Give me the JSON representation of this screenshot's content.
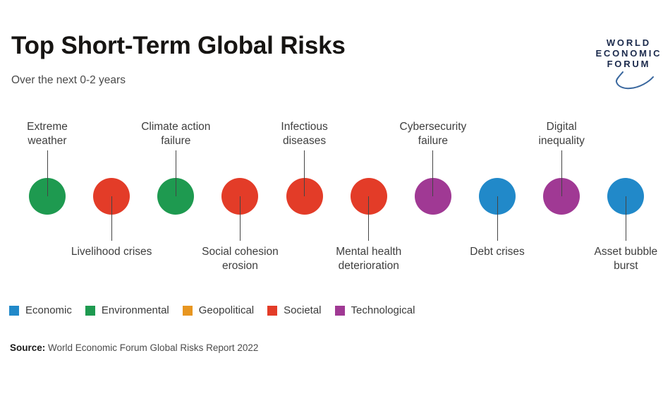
{
  "header": {
    "title": "Top Short-Term Global Risks",
    "subtitle": "Over the next 0-2 years"
  },
  "logo": {
    "text": "WORLD\nECONOMIC\nFORUM"
  },
  "chart_data": {
    "type": "scatter",
    "title": "Top Short-Term Global Risks",
    "subtitle": "Over the next 0-2 years",
    "points": [
      {
        "rank": 1,
        "label": "Extreme\nweather",
        "category": "Environmental",
        "label_position": "above"
      },
      {
        "rank": 2,
        "label": "Livelihood crises",
        "category": "Societal",
        "label_position": "below"
      },
      {
        "rank": 3,
        "label": "Climate action\nfailure",
        "category": "Environmental",
        "label_position": "above"
      },
      {
        "rank": 4,
        "label": "Social cohesion\nerosion",
        "category": "Societal",
        "label_position": "below"
      },
      {
        "rank": 5,
        "label": "Infectious\ndiseases",
        "category": "Societal",
        "label_position": "above"
      },
      {
        "rank": 6,
        "label": "Mental health\ndeterioration",
        "category": "Societal",
        "label_position": "below"
      },
      {
        "rank": 7,
        "label": "Cybersecurity\nfailure",
        "category": "Technological",
        "label_position": "above"
      },
      {
        "rank": 8,
        "label": "Debt crises",
        "category": "Economic",
        "label_position": "below"
      },
      {
        "rank": 9,
        "label": "Digital\ninequality",
        "category": "Technological",
        "label_position": "above"
      },
      {
        "rank": 10,
        "label": "Asset bubble\nburst",
        "category": "Economic",
        "label_position": "below"
      }
    ],
    "legend": [
      {
        "name": "Economic",
        "color": "#2189c9"
      },
      {
        "name": "Environmental",
        "color": "#1e9a50"
      },
      {
        "name": "Geopolitical",
        "color": "#e89620"
      },
      {
        "name": "Societal",
        "color": "#e33c28"
      },
      {
        "name": "Technological",
        "color": "#a03994"
      }
    ],
    "legend_position": "bottom-left"
  },
  "source": {
    "label": "Source:",
    "text": " World Economic Forum Global Risks Report 2022"
  }
}
